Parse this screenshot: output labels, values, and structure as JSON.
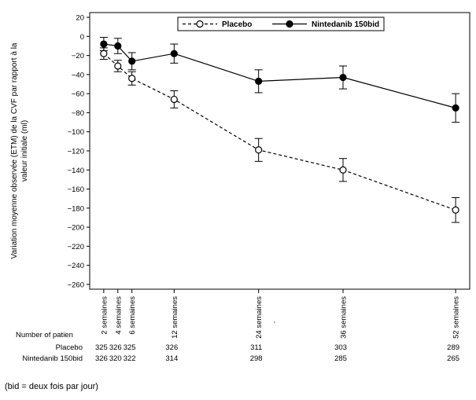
{
  "chart_data": {
    "type": "line",
    "title": "",
    "ylabel_lines": [
      "Variation moyenne observée (ETM) de la CVF par rapport à la",
      "valeur initiale (ml)"
    ],
    "ylim": [
      -265,
      25
    ],
    "yticks": [
      20,
      0,
      -20,
      -40,
      -60,
      -80,
      -100,
      -120,
      -140,
      -160,
      -180,
      -200,
      -220,
      -240,
      -260
    ],
    "x": [
      2,
      4,
      6,
      12,
      24,
      36,
      52
    ],
    "xlim": [
      0,
      54
    ],
    "xtick_labels": [
      "2 semaines",
      "4 semaines",
      "6 semaines",
      "12 semaines",
      "24 semaines",
      "36 semaines",
      "52 semaines"
    ],
    "legend": {
      "position": "top-center"
    },
    "series": [
      {
        "name": "Placebo",
        "style": "dashed",
        "marker": "open-circle",
        "values": [
          -18,
          -31,
          -44,
          -66,
          -119,
          -140,
          -182
        ],
        "err": [
          6,
          6,
          7,
          9,
          12,
          12,
          13
        ]
      },
      {
        "name": "Nintedanib 150bid",
        "style": "solid",
        "marker": "filled-circle",
        "values": [
          -8,
          -10,
          -26,
          -18,
          -47,
          -43,
          -75
        ],
        "err": [
          7,
          8,
          9,
          10,
          12,
          12,
          15
        ]
      }
    ],
    "patients_table": {
      "header": "Number of patien",
      "rows": [
        {
          "label": "Placebo",
          "values": [
            "325",
            "326",
            "325",
            "326",
            "311",
            "303",
            "289"
          ]
        },
        {
          "label": "Nintedanib 150bid",
          "values": [
            "326",
            "320",
            "322",
            "314",
            "298",
            "285",
            "265"
          ]
        }
      ]
    }
  },
  "footnote": "(bid = deux fois par jour)"
}
